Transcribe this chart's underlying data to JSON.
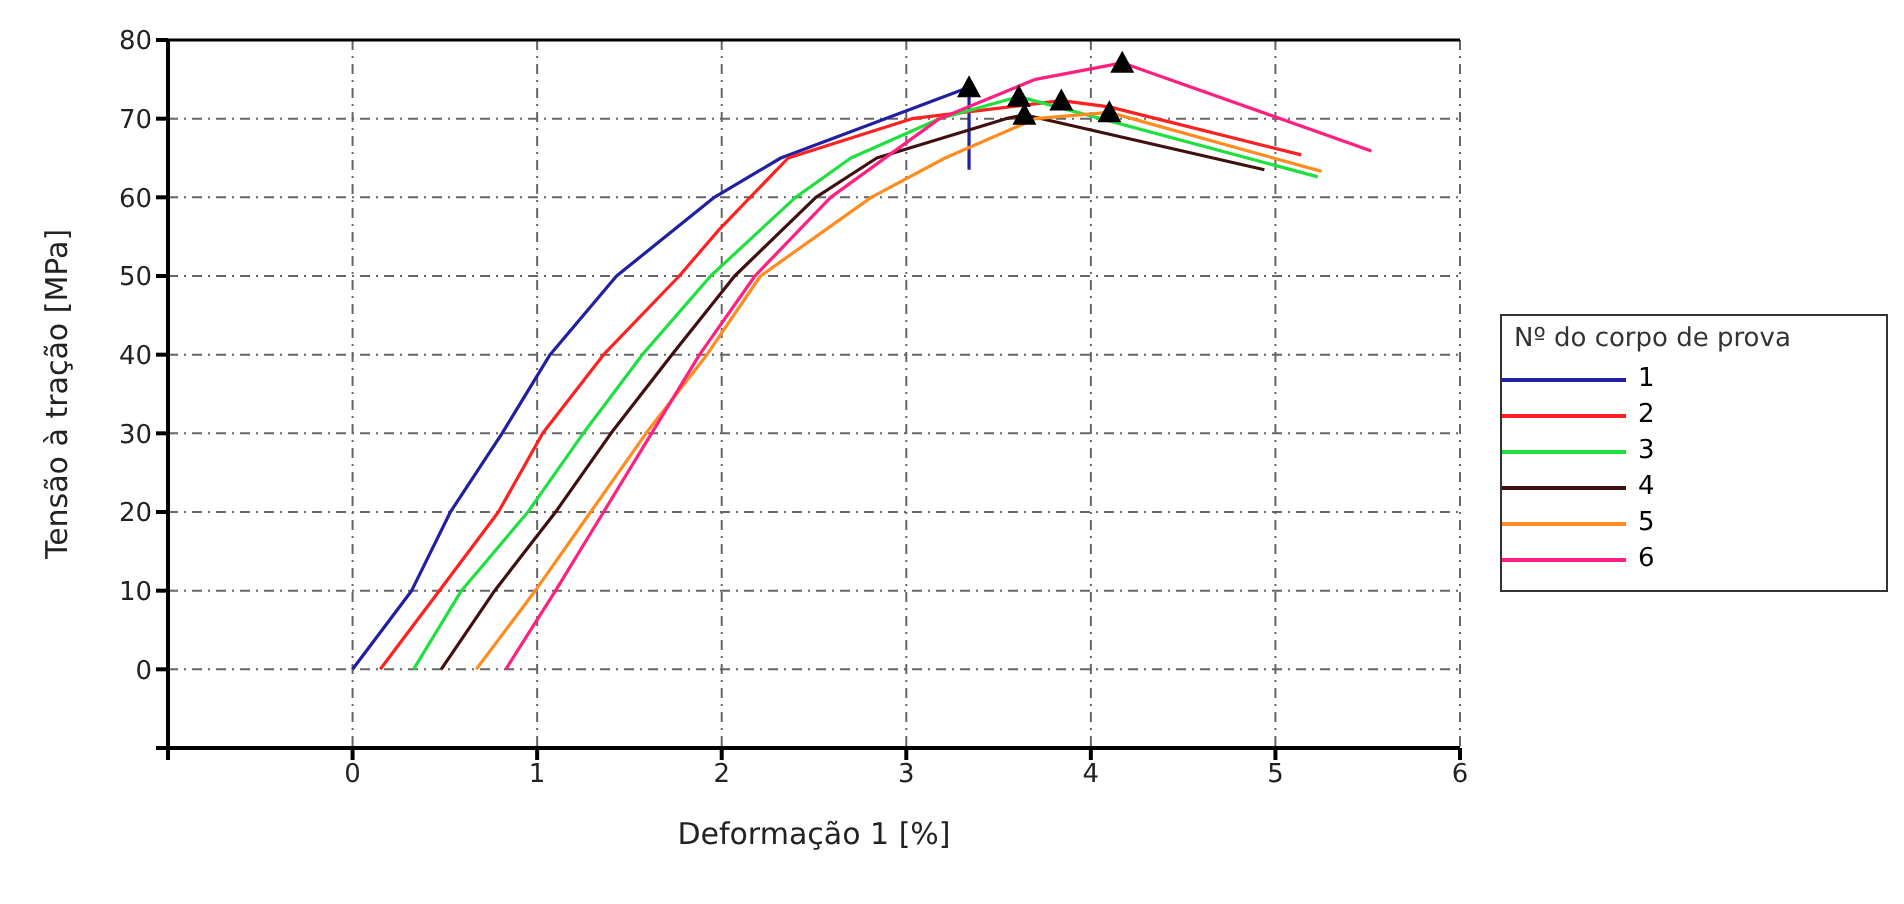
{
  "chart_data": {
    "type": "line",
    "xlabel": "Deformação 1 [%]",
    "ylabel": "Tensão à tração [MPa]",
    "legend_title": "Nº do corpo de prova",
    "legend": "right",
    "grid": true,
    "marker": "none",
    "line_style": "solid",
    "xlim": [
      -1,
      6
    ],
    "xticks": [
      {
        "value": -1,
        "label": null
      },
      0,
      1,
      2,
      3,
      4,
      5,
      6
    ],
    "ylim": [
      -10,
      80
    ],
    "yticks": [
      {
        "value": -10,
        "label": null
      },
      0,
      10,
      20,
      30,
      40,
      50,
      60,
      70,
      80
    ],
    "series": [
      {
        "name": "1",
        "color": "#2020a0",
        "x": [
          0,
          0.32,
          0.53,
          0.81,
          1.07,
          1.43,
          1.96,
          2.32,
          3.34,
          3.34
        ],
        "values": [
          0,
          10,
          20,
          30,
          40,
          50,
          60,
          65,
          74,
          63.5
        ]
      },
      {
        "name": "2",
        "color": "#ff2020",
        "x": [
          0.15,
          0.47,
          0.79,
          1.03,
          1.36,
          1.77,
          1.99,
          2.36,
          3.03,
          3.84,
          4.1,
          5.14
        ],
        "values": [
          0,
          10,
          20,
          30,
          40,
          50,
          56,
          65,
          70,
          72.3,
          71.5,
          65.4
        ]
      },
      {
        "name": "3",
        "color": "#20e040",
        "x": [
          0.33,
          0.59,
          0.95,
          1.25,
          1.57,
          1.94,
          2.4,
          2.7,
          3.18,
          3.61,
          5.23
        ],
        "values": [
          0,
          10,
          20,
          30,
          40,
          50,
          60,
          65,
          70,
          72.8,
          62.6
        ]
      },
      {
        "name": "4",
        "color": "#401010",
        "x": [
          0.48,
          0.77,
          1.1,
          1.4,
          1.73,
          2.07,
          2.51,
          2.84,
          3.54,
          3.64,
          4.94
        ],
        "values": [
          0,
          10,
          20,
          30,
          40,
          50,
          60,
          65,
          70,
          70.5,
          63.5
        ]
      },
      {
        "name": "5",
        "color": "#ff8c20",
        "x": [
          0.67,
          0.99,
          1.29,
          1.59,
          1.92,
          2.21,
          2.81,
          3.21,
          3.7,
          4.1,
          5.25
        ],
        "values": [
          0,
          10,
          20,
          30,
          40,
          50,
          60,
          65,
          70,
          70.8,
          63.3
        ]
      },
      {
        "name": "6",
        "color": "#ff2080",
        "x": [
          0.83,
          1.1,
          1.36,
          1.62,
          1.88,
          2.18,
          2.59,
          3.18,
          3.7,
          4.17,
          5.52
        ],
        "values": [
          0,
          10,
          20,
          30,
          40,
          50,
          60,
          70,
          75,
          77.1,
          65.9
        ]
      },
      {
        "type": "scatter",
        "color": "#000000",
        "marker": "triangle",
        "x": [
          3.34,
          3.61,
          3.64,
          3.84,
          4.1,
          4.17
        ],
        "values": [
          74,
          72.8,
          70.5,
          72.3,
          70.8,
          77.1
        ]
      }
    ]
  }
}
